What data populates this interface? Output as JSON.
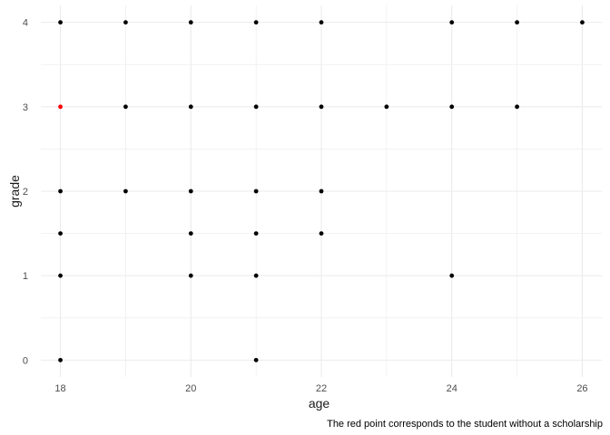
{
  "chart_data": {
    "type": "scatter",
    "xlabel": "age",
    "ylabel": "grade",
    "caption": "The red point corresponds to the student without a scholarship",
    "xlim": [
      17.7,
      26.3
    ],
    "ylim": [
      -0.2,
      4.2
    ],
    "x_ticks": [
      18,
      20,
      22,
      24,
      26
    ],
    "x_minor_ticks": [
      19,
      21,
      23,
      25
    ],
    "y_ticks": [
      0,
      1,
      2,
      3,
      4
    ],
    "y_minor_ticks": [
      0.5,
      1.5,
      2.5,
      3.5
    ],
    "grid": true,
    "legend": "none",
    "colors": {
      "point": "#000000",
      "highlight": "#ff0000",
      "grid": "#ebebeb"
    },
    "points": [
      {
        "x": 18,
        "y": 4
      },
      {
        "x": 19,
        "y": 4
      },
      {
        "x": 20,
        "y": 4
      },
      {
        "x": 21,
        "y": 4
      },
      {
        "x": 22,
        "y": 4
      },
      {
        "x": 24,
        "y": 4
      },
      {
        "x": 25,
        "y": 4
      },
      {
        "x": 26,
        "y": 4
      },
      {
        "x": 18,
        "y": 3,
        "highlight": true
      },
      {
        "x": 19,
        "y": 3
      },
      {
        "x": 20,
        "y": 3
      },
      {
        "x": 21,
        "y": 3
      },
      {
        "x": 22,
        "y": 3
      },
      {
        "x": 23,
        "y": 3
      },
      {
        "x": 24,
        "y": 3
      },
      {
        "x": 25,
        "y": 3
      },
      {
        "x": 18,
        "y": 2
      },
      {
        "x": 19,
        "y": 2
      },
      {
        "x": 20,
        "y": 2
      },
      {
        "x": 21,
        "y": 2
      },
      {
        "x": 22,
        "y": 2
      },
      {
        "x": 18,
        "y": 1.5
      },
      {
        "x": 20,
        "y": 1.5
      },
      {
        "x": 21,
        "y": 1.5
      },
      {
        "x": 22,
        "y": 1.5
      },
      {
        "x": 18,
        "y": 1
      },
      {
        "x": 20,
        "y": 1
      },
      {
        "x": 21,
        "y": 1
      },
      {
        "x": 24,
        "y": 1
      },
      {
        "x": 18,
        "y": 0
      },
      {
        "x": 21,
        "y": 0
      }
    ]
  }
}
